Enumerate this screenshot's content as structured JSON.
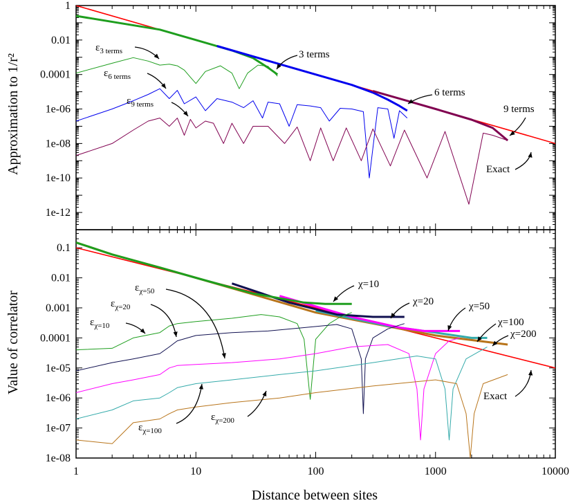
{
  "colors": {
    "exact": "#ff0000",
    "green": "#1e9e1e",
    "blue": "#0000ee",
    "purple": "#800050",
    "navy": "#101050",
    "magenta": "#ff00ff",
    "teal": "#33aaaa",
    "brown": "#b8741a"
  },
  "chart_data": [
    {
      "type": "line",
      "xscale": "log",
      "yscale": "log",
      "xlim": [
        1,
        10000
      ],
      "ylim": [
        1e-13,
        1
      ],
      "ylabel": "Approximation to 1/r²",
      "ytick_labels": [
        "1",
        "0.01",
        "0.0001",
        "1e-06",
        "1e-08",
        "1e-10",
        "1e-12"
      ],
      "annotations": {
        "exact": "Exact",
        "t3": "3 terms",
        "t6": "6 terms",
        "t9": "9 terms",
        "e3_main": "ε",
        "e3_sub": "3 terms",
        "e6_main": "ε",
        "e6_sub": "6 terms",
        "e9_main": "ε",
        "e9_sub": "9 terms"
      },
      "series": [
        {
          "name": "Exact",
          "color": "#ff0000",
          "x": [
            1,
            10000
          ],
          "y": [
            1,
            1e-08
          ]
        },
        {
          "name": "3 terms",
          "color": "#1e9e1e",
          "x": [
            1,
            5,
            10,
            20,
            30,
            40,
            48
          ],
          "y": [
            0.25,
            0.04,
            0.01,
            0.0025,
            0.0009,
            0.00025,
            0.0001
          ]
        },
        {
          "name": "6 terms",
          "color": "#0000ee",
          "x": [
            15,
            50,
            100,
            200,
            300,
            400,
            500,
            580
          ],
          "y": [
            0.0045,
            0.0004,
            0.0001,
            2.5e-05,
            9e-06,
            3.5e-06,
            1.5e-06,
            8e-07
          ]
        },
        {
          "name": "9 terms",
          "color": "#800050",
          "x": [
            300,
            600,
            1000,
            2000,
            3000,
            4000
          ],
          "y": [
            1.1e-05,
            2.8e-06,
            1e-06,
            2.4e-07,
            8e-08,
            1.5e-08
          ]
        },
        {
          "name": "ε 3 terms",
          "color": "#1e9e1e",
          "x": [
            1,
            2,
            3,
            4,
            5,
            6,
            7,
            8,
            9,
            10,
            12,
            16,
            20,
            23,
            27,
            33,
            40,
            48
          ],
          "y": [
            0.00012,
            0.00045,
            0.00095,
            0.0006,
            0.00035,
            0.0004,
            0.00032,
            0.00018,
            7e-05,
            3e-05,
            0.00015,
            0.00032,
            0.00012,
            1.5e-05,
            0.00012,
            0.00035,
            0.0003,
            8e-05
          ]
        },
        {
          "name": "ε 6 terms",
          "color": "#0000ee",
          "x": [
            1,
            2,
            3,
            4,
            5,
            6,
            7,
            8,
            10,
            12,
            15,
            20,
            25,
            30,
            36,
            40,
            50,
            60,
            70,
            90,
            110,
            130,
            160,
            200,
            250,
            280,
            330,
            400,
            450,
            500,
            580
          ],
          "y": [
            2e-07,
            1e-06,
            3e-06,
            7e-06,
            1.5e-05,
            4e-06,
            1.2e-05,
            2e-06,
            5e-06,
            8e-07,
            4e-06,
            2.5e-06,
            1.2e-06,
            3e-06,
            3e-07,
            2.5e-06,
            2e-06,
            1e-07,
            1.8e-06,
            1.5e-06,
            1.2e-06,
            2e-07,
            1.1e-06,
            1e-06,
            7e-07,
            1e-10,
            1.2e-06,
            1e-06,
            2e-08,
            8e-07,
            3e-07
          ]
        },
        {
          "name": "ε 9 terms",
          "color": "#800050",
          "x": [
            1,
            2,
            3,
            4,
            5,
            6,
            7,
            8,
            9,
            10,
            12,
            14,
            17,
            20,
            25,
            30,
            40,
            55,
            70,
            90,
            110,
            140,
            180,
            240,
            300,
            420,
            550,
            850,
            1200,
            1900,
            2500,
            3000,
            4000
          ],
          "y": [
            2e-09,
            1e-08,
            6e-08,
            2e-07,
            3e-07,
            1e-07,
            3e-07,
            3e-08,
            2.5e-07,
            8e-08,
            2e-07,
            1.5e-07,
            1e-08,
            1.5e-07,
            1e-08,
            1e-07,
            1e-07,
            1e-08,
            9e-08,
            1e-09,
            8e-08,
            1e-09,
            8e-08,
            1e-09,
            7e-08,
            5e-10,
            6e-08,
            1e-10,
            5e-08,
            3e-12,
            4e-08,
            3e-08,
            1.5e-08
          ]
        }
      ]
    },
    {
      "type": "line",
      "xscale": "log",
      "yscale": "log",
      "xlim": [
        1,
        10000
      ],
      "ylim": [
        1e-08,
        0.4
      ],
      "xlabel": "Distance between sites",
      "ylabel": "Value of correlator",
      "xtick_labels": [
        "1",
        "10",
        "100",
        "1000",
        "10000"
      ],
      "ytick_labels": [
        "0.1",
        "0.01",
        "0.001",
        "0.0001",
        "1e-05",
        "1e-06",
        "1e-07",
        "1e-08"
      ],
      "annotations": {
        "exact": "Exact",
        "c10": "χ=10",
        "c20": "χ=20",
        "c50": "χ=50",
        "c100": "χ=100",
        "c200": "χ=200",
        "e_main": "ε",
        "e50_sub": "χ=50",
        "e20_sub": "χ=20",
        "e10_sub": "χ=10",
        "e100_sub": "χ=100",
        "e200_sub": "χ=200"
      },
      "series": [
        {
          "name": "Exact",
          "color": "#ff0000",
          "x": [
            1,
            10000
          ],
          "y": [
            0.1,
            1e-05
          ]
        },
        {
          "name": "χ=200",
          "color": "#b8741a",
          "x": [
            1,
            2,
            5,
            10,
            100,
            1000,
            4000
          ],
          "y": [
            0.15,
            0.06,
            0.022,
            0.01,
            0.0007,
            0.00012,
            6e-05
          ]
        },
        {
          "name": "χ=100",
          "color": "#33aaaa",
          "x": [
            100,
            400,
            1000,
            2000,
            2700
          ],
          "y": [
            0.0008,
            0.00025,
            0.00015,
            0.0001,
            0.0001
          ]
        },
        {
          "name": "χ=50",
          "color": "#ff00ff",
          "x": [
            50,
            200,
            500,
            800,
            1600
          ],
          "y": [
            0.0025,
            0.0005,
            0.00022,
            0.00017,
            0.00017
          ]
        },
        {
          "name": "χ=20",
          "color": "#101050",
          "x": [
            20,
            60,
            150,
            300,
            550
          ],
          "y": [
            0.0065,
            0.0015,
            0.0006,
            0.0005,
            0.0005
          ]
        },
        {
          "name": "χ=10",
          "color": "#1e9e1e",
          "x": [
            1,
            2,
            5,
            10,
            30,
            80,
            120,
            200
          ],
          "y": [
            0.15,
            0.06,
            0.022,
            0.01,
            0.003,
            0.0015,
            0.00135,
            0.00135
          ]
        },
        {
          "name": "ε χ=10",
          "color": "#1e9e1e",
          "x": [
            1,
            2,
            3,
            5,
            6,
            7,
            10,
            20,
            35,
            50,
            70,
            80,
            90,
            100,
            130,
            160,
            200
          ],
          "y": [
            4e-05,
            4.5e-05,
            0.0001,
            0.00015,
            0.00025,
            0.0003,
            0.00035,
            0.00045,
            0.0006,
            0.0005,
            0.0003,
            9e-05,
            9e-07,
            9e-05,
            0.0003,
            0.0005,
            0.0007
          ]
        },
        {
          "name": "ε χ=20",
          "color": "#101050",
          "x": [
            1,
            2,
            3,
            5,
            6,
            7,
            10,
            20,
            40,
            80,
            150,
            200,
            240,
            250,
            260,
            300,
            400,
            550
          ],
          "y": [
            8e-06,
            1.5e-05,
            2e-05,
            3e-05,
            5e-05,
            8e-05,
            0.00012,
            0.00015,
            0.00017,
            0.00022,
            0.00028,
            0.0002,
            2e-05,
            3e-07,
            2e-05,
            0.0001,
            0.0002,
            0.0003
          ]
        },
        {
          "name": "ε χ=50",
          "color": "#ff00ff",
          "x": [
            1,
            2,
            3,
            5,
            6,
            7,
            10,
            20,
            50,
            100,
            200,
            400,
            600,
            700,
            750,
            800,
            1000,
            1300,
            1600
          ],
          "y": [
            1.5e-06,
            3e-06,
            4e-06,
            6e-06,
            1e-05,
            1.2e-05,
            1.3e-05,
            1.5e-05,
            2e-05,
            3e-05,
            5e-05,
            6e-05,
            3e-05,
            2e-06,
            4e-08,
            2e-06,
            3e-05,
            8e-05,
            0.0001
          ]
        },
        {
          "name": "ε χ=100",
          "color": "#33aaaa",
          "x": [
            1,
            2,
            3,
            5,
            6,
            7,
            10,
            20,
            50,
            100,
            300,
            700,
            1000,
            1200,
            1300,
            1400,
            1800,
            2700
          ],
          "y": [
            2e-07,
            4e-07,
            8e-07,
            1e-06,
            1.5e-06,
            2.2e-06,
            3e-06,
            4e-06,
            6e-06,
            8e-06,
            1.5e-05,
            2.5e-05,
            2e-05,
            2e-06,
            4e-08,
            2e-06,
            2e-05,
            5e-05
          ]
        },
        {
          "name": "ε χ=200",
          "color": "#b8741a",
          "x": [
            1,
            2,
            3,
            5,
            6,
            7,
            10,
            20,
            50,
            100,
            300,
            1000,
            1500,
            1800,
            1950,
            2100,
            2500,
            4000
          ],
          "y": [
            4e-08,
            3e-08,
            1.5e-07,
            2e-07,
            3e-07,
            4e-07,
            5e-07,
            7e-07,
            1e-06,
            1.5e-06,
            2.5e-06,
            4e-06,
            3e-06,
            3e-07,
            1e-08,
            3e-07,
            3e-06,
            6e-06
          ]
        }
      ]
    }
  ]
}
